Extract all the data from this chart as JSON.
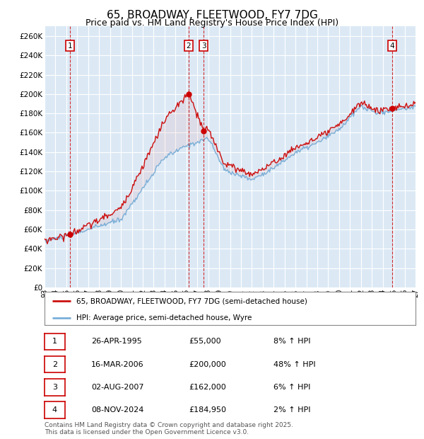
{
  "title": "65, BROADWAY, FLEETWOOD, FY7 7DG",
  "subtitle": "Price paid vs. HM Land Registry's House Price Index (HPI)",
  "yticks": [
    0,
    20000,
    40000,
    60000,
    80000,
    100000,
    120000,
    140000,
    160000,
    180000,
    200000,
    220000,
    240000,
    260000
  ],
  "ylim": [
    0,
    270000
  ],
  "xlim_start": 1993.0,
  "xlim_end": 2027.0,
  "bg_color": "#dce9f5",
  "grid_color": "#ffffff",
  "line_color_hpi": "#7ab0d9",
  "line_color_price": "#cc1111",
  "transactions": [
    {
      "num": 1,
      "date": 1995.32,
      "price": 55000,
      "label": "1"
    },
    {
      "num": 2,
      "date": 2006.21,
      "price": 200000,
      "label": "2"
    },
    {
      "num": 3,
      "date": 2007.58,
      "price": 162000,
      "label": "3"
    },
    {
      "num": 4,
      "date": 2024.86,
      "price": 184950,
      "label": "4"
    }
  ],
  "legend_entries": [
    "65, BROADWAY, FLEETWOOD, FY7 7DG (semi-detached house)",
    "HPI: Average price, semi-detached house, Wyre"
  ],
  "table_rows": [
    [
      "1",
      "26-APR-1995",
      "£55,000",
      "8% ↑ HPI"
    ],
    [
      "2",
      "16-MAR-2006",
      "£200,000",
      "48% ↑ HPI"
    ],
    [
      "3",
      "02-AUG-2007",
      "£162,000",
      "6% ↑ HPI"
    ],
    [
      "4",
      "08-NOV-2024",
      "£184,950",
      "2% ↑ HPI"
    ]
  ],
  "footer": "Contains HM Land Registry data © Crown copyright and database right 2025.\nThis data is licensed under the Open Government Licence v3.0.",
  "xtick_years": [
    1993,
    1994,
    1995,
    1996,
    1997,
    1998,
    1999,
    2000,
    2001,
    2002,
    2003,
    2004,
    2005,
    2006,
    2007,
    2008,
    2009,
    2010,
    2011,
    2012,
    2013,
    2014,
    2015,
    2016,
    2017,
    2018,
    2019,
    2020,
    2021,
    2022,
    2023,
    2024,
    2025,
    2026,
    2027
  ],
  "xtick_labels": [
    "93",
    "94",
    "95",
    "96",
    "97",
    "98",
    "99",
    "00",
    "01",
    "02",
    "03",
    "04",
    "05",
    "06",
    "07",
    "08",
    "09",
    "10",
    "11",
    "12",
    "13",
    "14",
    "15",
    "16",
    "17",
    "18",
    "19",
    "20",
    "21",
    "22",
    "23",
    "24",
    "25",
    "26",
    "27"
  ]
}
